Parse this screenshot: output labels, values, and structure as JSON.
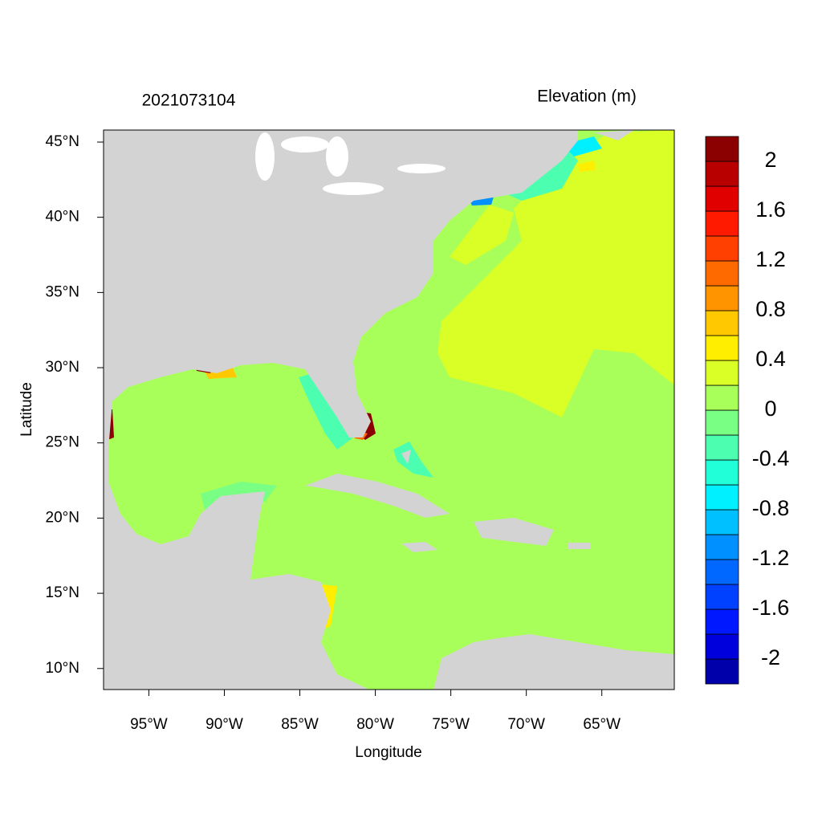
{
  "chart_data": {
    "type": "map",
    "title": "2021073104",
    "subtitle": "Elevation (m)",
    "x_label": "Longitude",
    "y_label": "Latitude",
    "xlim": [
      -98,
      -60.2
    ],
    "ylim": [
      8.6,
      45.8
    ],
    "xticks": [
      {
        "value": -95,
        "label": "95°W"
      },
      {
        "value": -90,
        "label": "90°W"
      },
      {
        "value": -85,
        "label": "85°W"
      },
      {
        "value": -80,
        "label": "80°W"
      },
      {
        "value": -75,
        "label": "75°W"
      },
      {
        "value": -70,
        "label": "70°W"
      },
      {
        "value": -65,
        "label": "65°W"
      }
    ],
    "yticks": [
      {
        "value": 10,
        "label": "10°N"
      },
      {
        "value": 15,
        "label": "15°N"
      },
      {
        "value": 20,
        "label": "20°N"
      },
      {
        "value": 25,
        "label": "25°N"
      },
      {
        "value": 30,
        "label": "30°N"
      },
      {
        "value": 35,
        "label": "35°N"
      },
      {
        "value": 40,
        "label": "40°N"
      },
      {
        "value": 45,
        "label": "45°N"
      }
    ],
    "colorbar": {
      "levels": [
        -2.2,
        -2,
        -1.8,
        -1.6,
        -1.4,
        -1.2,
        -1,
        -0.8,
        -0.6,
        -0.4,
        -0.2,
        0,
        0.2,
        0.4,
        0.6,
        0.8,
        1,
        1.2,
        1.4,
        1.6,
        1.8,
        2,
        2.2
      ],
      "colors": [
        "#0000aa",
        "#0000dd",
        "#0018ff",
        "#0040ff",
        "#0068ff",
        "#0090ff",
        "#00c0ff",
        "#00f0ff",
        "#20ffd8",
        "#4cffb0",
        "#78ff84",
        "#a8ff5a",
        "#d9ff26",
        "#ffee00",
        "#ffc800",
        "#ff9400",
        "#ff6a00",
        "#ff4000",
        "#ff1a00",
        "#e00000",
        "#b80000",
        "#8b0000"
      ],
      "ticks": [
        -2,
        -1.6,
        -1.2,
        -0.8,
        -0.4,
        0,
        0.4,
        0.8,
        1.2,
        1.6,
        2
      ]
    },
    "land_color": "#d3d3d3"
  }
}
